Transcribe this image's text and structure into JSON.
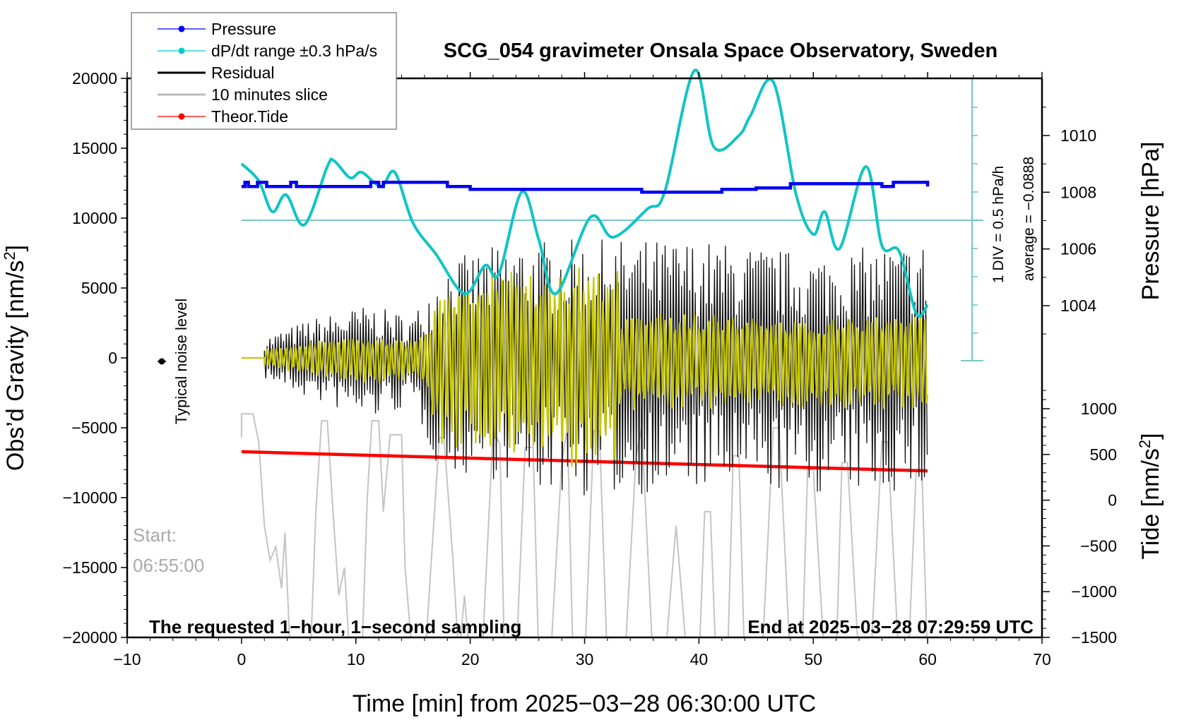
{
  "chart_data": {
    "type": "line",
    "title": "SCG_054 gravimeter Onsala Space Observatory, Sweden",
    "xlabel": "Time [min] from 2025−03−28 06:30:00 UTC",
    "ylabel_left": "Obs’d Gravity [nm/s²]",
    "ylabel_left_base": "Obs’d Gravity [nm/s",
    "ylabel_right_pressure": "Pressure [hPa]",
    "ylabel_right_tide_base": "Tide [nm/s",
    "xlim": [
      -10,
      70
    ],
    "ylim_left": [
      -20000,
      20000
    ],
    "pressure_ticks": [
      1004,
      1006,
      1008,
      1010
    ],
    "tide_ticks": [
      -1500,
      -1000,
      -500,
      0,
      500,
      1000
    ],
    "x_ticks": [
      -10,
      0,
      10,
      20,
      30,
      40,
      50,
      60,
      70
    ],
    "x_tick_labels": [
      "−10",
      "0",
      "10",
      "20",
      "30",
      "40",
      "50",
      "60",
      "70"
    ],
    "y_ticks": [
      -20000,
      -15000,
      -10000,
      -5000,
      0,
      5000,
      10000,
      15000,
      20000
    ],
    "y_tick_labels": [
      "−20000",
      "−15000",
      "−10000",
      "−5000",
      "0",
      "5000",
      "10000",
      "15000",
      "20000"
    ],
    "pressure_tick_labels": [
      "1004",
      "1006",
      "1008",
      "1010"
    ],
    "tide_tick_labels": [
      "−1500",
      "−1000",
      "−500",
      "0",
      "500",
      "1000"
    ],
    "legend": {
      "placement": "top-left",
      "entries": [
        {
          "label": "Pressure",
          "color": "#0000ff",
          "marker": true
        },
        {
          "label": "dP/dt range ±0.3 hPa/s",
          "color": "#00cccc",
          "marker": true
        },
        {
          "label": "Residual",
          "color": "#000000",
          "marker": false
        },
        {
          "label": "10 minutes slice",
          "color": "#bbbbbb",
          "marker": false
        },
        {
          "label": "Theor.Tide",
          "color": "#ff0000",
          "marker": true
        }
      ]
    },
    "annotations": {
      "noise_label": "Typical noise level",
      "start_label": "Start:",
      "start_time": "06:55:00",
      "bottom_left": "The requested 1−hour, 1−second sampling",
      "bottom_right": "End at 2025−03−28 07:29:59 UTC",
      "dpdt_div": "1 DIV = 0.5 hPa/h",
      "dpdt_average": "average = −0.0888"
    },
    "colors": {
      "pressure": "#0000ee",
      "dpdt": "#11c4c4",
      "dpdt_axis": "#66c0c0",
      "residual": "#000000",
      "filtered": "#c8c800",
      "slice": "#c4c4c4",
      "tide": "#ff0000"
    },
    "series": [
      {
        "name": "Pressure",
        "axis": "pressure",
        "x": [
          0,
          0.3,
          0.6,
          1.4,
          2.2,
          2.6,
          4.3,
          4.8,
          11,
          11.3,
          12,
          12.4,
          16,
          18,
          20,
          33,
          35,
          42,
          45,
          48,
          51,
          56,
          57,
          60
        ],
        "values": [
          1008.2,
          1008.35,
          1008.2,
          1008.35,
          1008.2,
          1008.2,
          1008.35,
          1008.2,
          1008.2,
          1008.35,
          1008.2,
          1008.35,
          1008.35,
          1008.2,
          1008.1,
          1008.1,
          1008.0,
          1008.1,
          1008.15,
          1008.3,
          1008.3,
          1008.2,
          1008.35,
          1008.2
        ]
      },
      {
        "name": "dP/dt range ±0.3 hPa/s",
        "axis": "dpdt",
        "unit": "hPa/h",
        "x": [
          0,
          1.5,
          2.7,
          3.9,
          5.5,
          7.5,
          8.1,
          9.5,
          10.5,
          12.2,
          13.4,
          15,
          17,
          19.5,
          21.3,
          22.5,
          24.5,
          26,
          27.5,
          30.5,
          32.5,
          35.5,
          37,
          39.6,
          41.3,
          43.5,
          44.5,
          46.5,
          48.5,
          50,
          51,
          52.3,
          54.6,
          56,
          57.5,
          59,
          60
        ],
        "values": [
          1.0,
          0.7,
          0.15,
          0.45,
          -0.08,
          0.95,
          1.05,
          0.75,
          0.85,
          0.6,
          0.85,
          -0.05,
          -0.6,
          -1.3,
          -0.8,
          -0.95,
          0.5,
          -0.35,
          -1.3,
          0.05,
          -0.3,
          0.2,
          0.5,
          2.65,
          1.3,
          1.5,
          1.85,
          2.45,
          0.45,
          -0.25,
          0.15,
          -0.5,
          0.95,
          -0.45,
          -0.55,
          -1.65,
          -1.5
        ]
      },
      {
        "name": "Theor.Tide",
        "axis": "tide",
        "x": [
          0,
          60
        ],
        "values": [
          530,
          320
        ]
      },
      {
        "name": "Residual",
        "axis": "gravity",
        "envelope_x": [
          0,
          2,
          6,
          11,
          15,
          17,
          18,
          22,
          24,
          25,
          30,
          35,
          40,
          45,
          50,
          55,
          60
        ],
        "envelope_max": [
          0,
          1500,
          2800,
          3800,
          3000,
          6000,
          7000,
          8000,
          8500,
          8500,
          8500,
          8500,
          8500,
          8000,
          7500,
          8000,
          8500
        ],
        "envelope_min": [
          0,
          -1500,
          -3000,
          -4500,
          -3500,
          -7500,
          -8300,
          -8700,
          -9000,
          -9500,
          -10000,
          -9800,
          -9500,
          -9500,
          -9800,
          -9700,
          -9700
        ]
      },
      {
        "name": "10 minutes slice",
        "axis": "gravity",
        "note": "10-min segment (06:55:00 start) stretched over plot, clipped beyond ±20000"
      }
    ]
  }
}
